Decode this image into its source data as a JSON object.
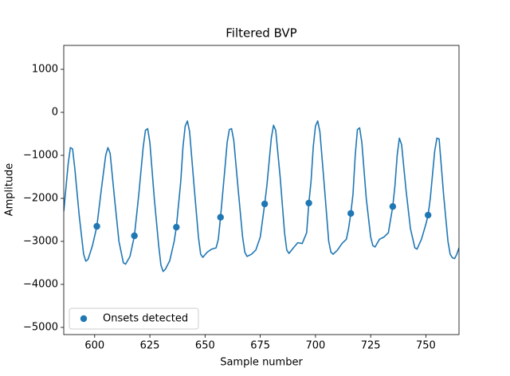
{
  "chart_data": {
    "type": "line",
    "title": "Filtered BVP",
    "xlabel": "Sample number",
    "ylabel": "Amplitude",
    "xlim": [
      586,
      765
    ],
    "ylim": [
      -5167,
      1556
    ],
    "xticks": [
      600,
      625,
      650,
      675,
      700,
      725,
      750
    ],
    "yticks": [
      {
        "value": -5000,
        "label": "−5000"
      },
      {
        "value": -4000,
        "label": "−4000"
      },
      {
        "value": -3000,
        "label": "−3000"
      },
      {
        "value": -2000,
        "label": "−2000"
      },
      {
        "value": -1000,
        "label": "−1000"
      },
      0,
      1000
    ],
    "legend": "lower left",
    "series": [
      {
        "color": "#1f77b4",
        "x": [
          586,
          588,
          589,
          590,
          591,
          593,
          595,
          596,
          597,
          599,
          601,
          603,
          605,
          606,
          607,
          609,
          611,
          613,
          614,
          616,
          618,
          620,
          622,
          623,
          624,
          625,
          627,
          629,
          630,
          631,
          632,
          634,
          636,
          637,
          639,
          640,
          641,
          642,
          643,
          645,
          647,
          648,
          649,
          651,
          653,
          655,
          656,
          657,
          659,
          660,
          661,
          662,
          663,
          665,
          667,
          668,
          669,
          671,
          673,
          675,
          677,
          678,
          680,
          681,
          682,
          684,
          686,
          687,
          688,
          690,
          692,
          694,
          696,
          697,
          698,
          699,
          700,
          701,
          702,
          704,
          706,
          707,
          708,
          710,
          712,
          714,
          715,
          716,
          717,
          718,
          719,
          720,
          721,
          723,
          725,
          726,
          727,
          729,
          731,
          733,
          735,
          736,
          737,
          738,
          739,
          741,
          743,
          745,
          746,
          748,
          750,
          751,
          752,
          754,
          755,
          756,
          758,
          760,
          761,
          762,
          763,
          764,
          765
        ],
        "values": [
          -2300,
          -1200,
          -820,
          -850,
          -1300,
          -2400,
          -3300,
          -3460,
          -3420,
          -3100,
          -2650,
          -1800,
          -1000,
          -820,
          -950,
          -2000,
          -3000,
          -3500,
          -3530,
          -3350,
          -2870,
          -1900,
          -800,
          -420,
          -380,
          -700,
          -2000,
          -3100,
          -3550,
          -3700,
          -3650,
          -3450,
          -3000,
          -2670,
          -1600,
          -800,
          -320,
          -200,
          -450,
          -1700,
          -2900,
          -3300,
          -3370,
          -3250,
          -3180,
          -3150,
          -2950,
          -2440,
          -1300,
          -700,
          -400,
          -380,
          -650,
          -1800,
          -2900,
          -3250,
          -3350,
          -3300,
          -3200,
          -2900,
          -2130,
          -1700,
          -600,
          -300,
          -420,
          -1500,
          -2800,
          -3200,
          -3280,
          -3150,
          -3030,
          -3050,
          -2800,
          -2110,
          -1600,
          -800,
          -320,
          -200,
          -450,
          -1700,
          -3000,
          -3250,
          -3300,
          -3200,
          -3050,
          -2950,
          -2700,
          -2350,
          -1900,
          -1000,
          -400,
          -360,
          -700,
          -2000,
          -2900,
          -3100,
          -3130,
          -2950,
          -2900,
          -2800,
          -2190,
          -1700,
          -1000,
          -600,
          -750,
          -1800,
          -2700,
          -3150,
          -3180,
          -2950,
          -2600,
          -2390,
          -2000,
          -900,
          -600,
          -620,
          -1900,
          -3000,
          -3300,
          -3380,
          -3400,
          -3300,
          -3150
        ]
      },
      {
        "name": "Onsets detected",
        "color": "#1f77b4",
        "marker": "circle",
        "x": [
          601,
          618,
          637,
          657,
          677,
          697,
          716,
          735,
          751
        ],
        "values": [
          -2650,
          -2870,
          -2670,
          -2440,
          -2130,
          -2110,
          -2350,
          -2190,
          -2390
        ]
      }
    ]
  }
}
